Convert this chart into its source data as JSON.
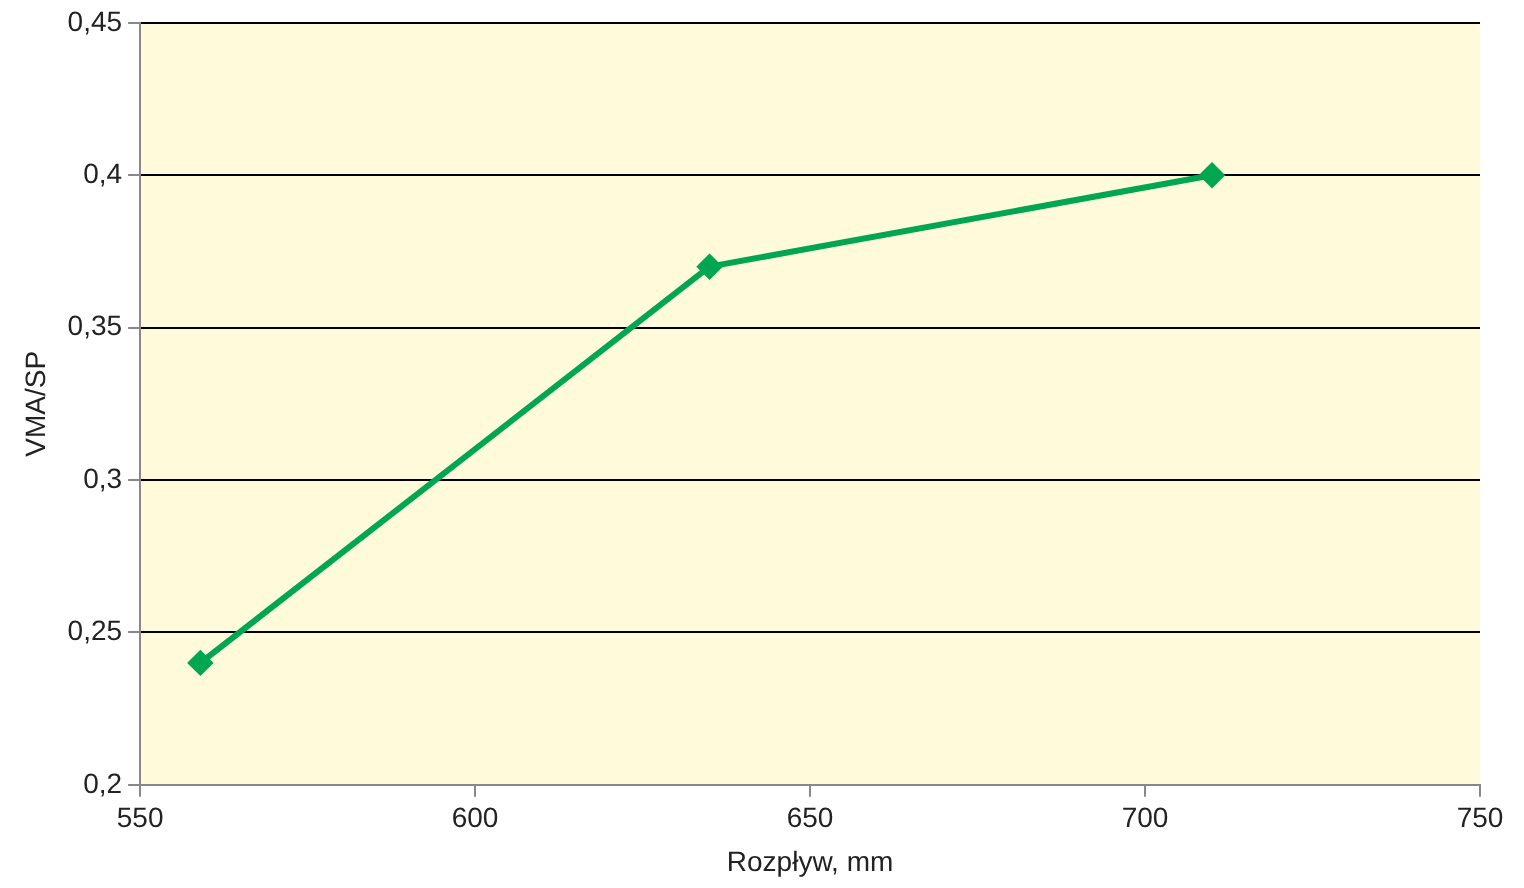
{
  "chart_data": {
    "type": "line",
    "xlabel": "Rozpływ, mm",
    "ylabel": "VMA/SP",
    "x": [
      559,
      635,
      710
    ],
    "series": [
      {
        "color": "#00a651",
        "values": [
          0.24,
          0.37,
          0.4
        ]
      }
    ],
    "xlim": [
      550,
      750
    ],
    "xticks": [
      550,
      600,
      650,
      700,
      750
    ],
    "ylim": [
      0.2,
      0.45
    ],
    "yticks": [
      {
        "value": 0.2,
        "label": "0,2"
      },
      {
        "value": 0.25,
        "label": "0,25"
      },
      {
        "value": 0.3,
        "label": "0,3"
      },
      {
        "value": 0.35,
        "label": "0,35"
      },
      {
        "value": 0.4,
        "label": "0,4"
      },
      {
        "value": 0.45,
        "label": "0,45"
      }
    ],
    "grid": "y",
    "legend": false,
    "marker": "diamond",
    "line_style": "solid"
  }
}
